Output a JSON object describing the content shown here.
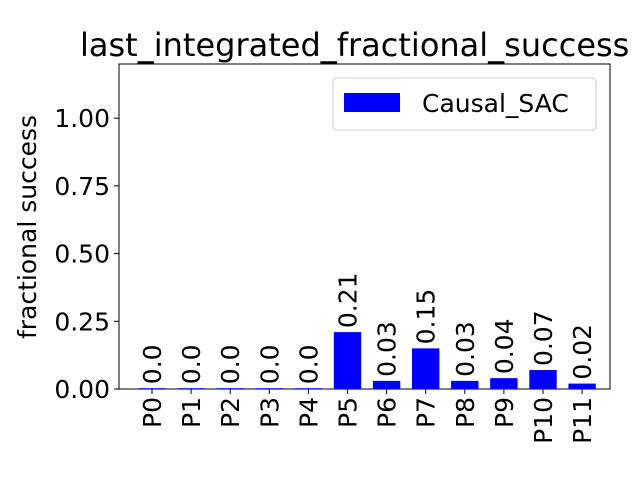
{
  "chart_data": {
    "type": "bar",
    "title": "last_integrated_fractional_success",
    "xlabel": "",
    "ylabel": "fractional success",
    "categories": [
      "P0",
      "P1",
      "P2",
      "P3",
      "P4",
      "P5",
      "P6",
      "P7",
      "P8",
      "P9",
      "P10",
      "P11"
    ],
    "series": [
      {
        "name": "Causal_SAC",
        "values": [
          0.0,
          0.0,
          0.0,
          0.0,
          0.0,
          0.21,
          0.03,
          0.15,
          0.03,
          0.04,
          0.07,
          0.02
        ],
        "labels": [
          "0.0",
          "0.0",
          "0.0",
          "0.0",
          "0.0",
          "0.21",
          "0.03",
          "0.15",
          "0.03",
          "0.04",
          "0.07",
          "0.02"
        ],
        "color": "#0000ff"
      }
    ],
    "ylim": [
      0,
      1.2
    ],
    "yticks": [
      "0.00",
      "0.25",
      "0.50",
      "0.75",
      "1.00"
    ],
    "ytick_values": [
      0,
      0.25,
      0.5,
      0.75,
      1.0
    ],
    "grid": false,
    "legend_position": "top-right"
  }
}
